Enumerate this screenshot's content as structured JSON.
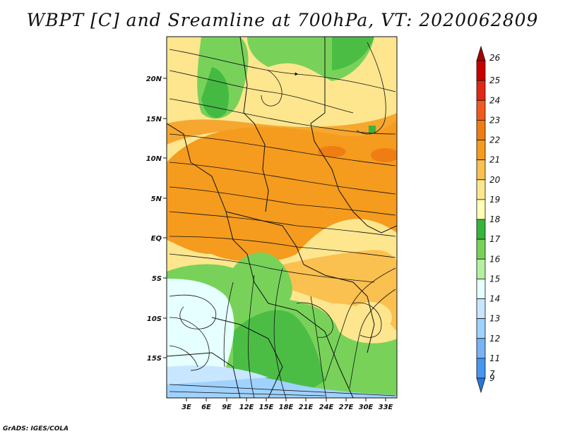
{
  "title": "WBPT [C] and Sreamline at 700hPa, VT: 2020062809",
  "credit": "GrADS: IGES/COLA",
  "lat_labels": [
    "20N",
    "15N",
    "10N",
    "5N",
    "EQ",
    "5S",
    "10S",
    "15S"
  ],
  "lon_labels": [
    "3E",
    "6E",
    "9E",
    "12E",
    "15E",
    "18E",
    "21E",
    "24E",
    "27E",
    "30E",
    "33E"
  ],
  "colorbar": {
    "levels": [
      "26",
      "25",
      "24",
      "23",
      "22",
      "21",
      "20",
      "19",
      "18",
      "17",
      "16",
      "15",
      "14",
      "13",
      "12",
      "11",
      "9",
      "7"
    ],
    "colors": [
      "#a50000",
      "#c80000",
      "#e12814",
      "#f05a1e",
      "#f07d14",
      "#f59b1e",
      "#fac050",
      "#fde68e",
      "#ffffb8",
      "#37b43c",
      "#78d25a",
      "#b4f0a0",
      "#e6ffff",
      "#c8e6ff",
      "#a0d2ff",
      "#78b4f5",
      "#4696f0",
      "#2878dc"
    ]
  },
  "map_layers": {
    "shaded_field": "wet-bulb potential temperature",
    "overlay": "streamlines",
    "boundaries": "country borders"
  }
}
